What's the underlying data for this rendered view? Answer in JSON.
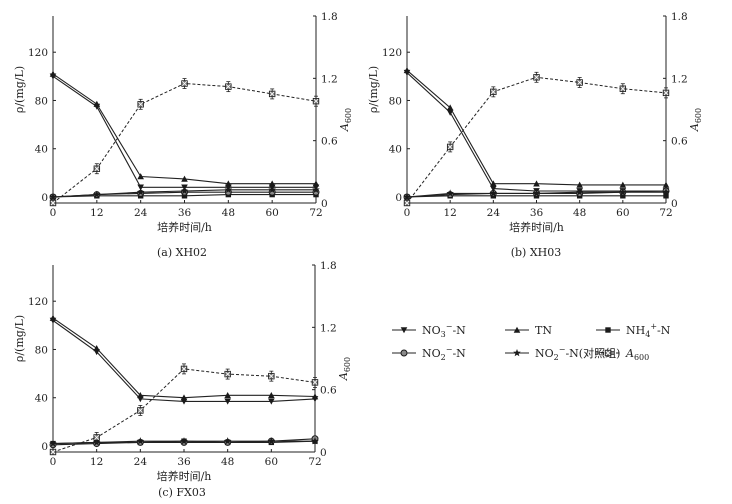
{
  "chart_data": [
    {
      "type": "line",
      "caption": "(a) XH02",
      "xlabel": "培养时间/h",
      "ylabel_left": "ρ/(mg/L)",
      "ylabel_right": "A600",
      "x": [
        0,
        12,
        24,
        36,
        48,
        60,
        72
      ],
      "xlim": [
        0,
        72
      ],
      "ylim_left": [
        0,
        150
      ],
      "ylim_right": [
        0,
        1.8
      ],
      "yticks_left": [
        0,
        40,
        80,
        120
      ],
      "yticks_right": [
        0,
        0.6,
        1.2,
        1.8
      ],
      "series": [
        {
          "name": "NO3−-N",
          "axis": "left",
          "values": [
            100,
            75,
            8,
            8,
            8,
            8,
            8
          ]
        },
        {
          "name": "TN",
          "axis": "left",
          "values": [
            102,
            77,
            17,
            15,
            11,
            11,
            11
          ]
        },
        {
          "name": "NH4+-N",
          "axis": "left",
          "values": [
            0,
            1,
            1,
            1,
            2,
            2,
            2
          ]
        },
        {
          "name": "NO2−-N",
          "axis": "left",
          "values": [
            0,
            2,
            3,
            4,
            4,
            4,
            4
          ]
        },
        {
          "name": "NO2−-N(对照组)",
          "axis": "left",
          "values": [
            0,
            2,
            4,
            5,
            6,
            6,
            6
          ]
        },
        {
          "name": "A600",
          "axis": "right",
          "values": [
            0,
            0.33,
            0.95,
            1.15,
            1.12,
            1.05,
            0.98
          ]
        }
      ]
    },
    {
      "type": "line",
      "caption": "(b) XH03",
      "xlabel": "培养时间/h",
      "ylabel_left": "ρ/(mg/L)",
      "ylabel_right": "A600",
      "x": [
        0,
        12,
        24,
        36,
        48,
        60,
        72
      ],
      "xlim": [
        0,
        72
      ],
      "ylim_left": [
        0,
        150
      ],
      "ylim_right": [
        0,
        1.8
      ],
      "yticks_left": [
        0,
        40,
        80,
        120
      ],
      "yticks_right": [
        0,
        0.6,
        1.2,
        1.8
      ],
      "series": [
        {
          "name": "NO3−-N",
          "axis": "left",
          "values": [
            103,
            70,
            7,
            5,
            5,
            5,
            5
          ]
        },
        {
          "name": "TN",
          "axis": "left",
          "values": [
            105,
            74,
            11,
            11,
            10,
            10,
            10
          ]
        },
        {
          "name": "NH4+-N",
          "axis": "left",
          "values": [
            0,
            1,
            1,
            1,
            1,
            1,
            1
          ]
        },
        {
          "name": "NO2−-N",
          "axis": "left",
          "values": [
            0,
            2,
            3,
            3,
            3,
            4,
            5
          ]
        },
        {
          "name": "NO2−-N(对照组)",
          "axis": "left",
          "values": [
            0,
            3,
            3,
            3,
            4,
            4,
            4
          ]
        },
        {
          "name": "A600",
          "axis": "right",
          "values": [
            0,
            0.54,
            1.07,
            1.21,
            1.16,
            1.1,
            1.06
          ]
        }
      ]
    },
    {
      "type": "line",
      "caption": "(c) FX03",
      "xlabel": "培养时间/h",
      "ylabel_left": "ρ/(mg/L)",
      "ylabel_right": "A600",
      "x": [
        0,
        12,
        24,
        36,
        48,
        60,
        72
      ],
      "xlim": [
        0,
        72
      ],
      "ylim_left": [
        0,
        150
      ],
      "ylim_right": [
        0,
        1.8
      ],
      "yticks_left": [
        0,
        40,
        80,
        120
      ],
      "yticks_right": [
        0,
        0.6,
        1.2,
        1.8
      ],
      "series": [
        {
          "name": "NO3−-N",
          "axis": "left",
          "values": [
            104,
            78,
            39,
            37,
            37,
            37,
            39
          ]
        },
        {
          "name": "TN",
          "axis": "left",
          "values": [
            106,
            81,
            42,
            40,
            42,
            42,
            41
          ]
        },
        {
          "name": "NH4+-N",
          "axis": "left",
          "values": [
            2,
            3,
            3,
            4,
            3,
            3,
            4
          ]
        },
        {
          "name": "NO2−-N",
          "axis": "left",
          "values": [
            1,
            2,
            3,
            3,
            3,
            4,
            6
          ]
        },
        {
          "name": "NO2−-N(对照组)",
          "axis": "left",
          "values": [
            2,
            3,
            4,
            4,
            4,
            4,
            4
          ]
        },
        {
          "name": "A600",
          "axis": "right",
          "values": [
            0,
            0.14,
            0.4,
            0.8,
            0.75,
            0.73,
            0.67
          ]
        }
      ]
    }
  ],
  "legend": [
    {
      "label": "NO3−-N",
      "marker": "triangle-down",
      "line": "solid"
    },
    {
      "label": "TN",
      "marker": "triangle-up",
      "line": "solid"
    },
    {
      "label": "NH4+-N",
      "marker": "square",
      "line": "solid"
    },
    {
      "label": "NO2−-N",
      "marker": "circle",
      "line": "solid"
    },
    {
      "label": "NO2−-N(对照组)",
      "marker": "star",
      "line": "solid"
    },
    {
      "label": "A600",
      "marker": "x-square",
      "line": "dashed"
    }
  ],
  "colors": {
    "line": "#222222",
    "marker": "#1a1a1a",
    "circle_fill": "#8a8a8a",
    "a600_fill": "#7a7a7a"
  }
}
